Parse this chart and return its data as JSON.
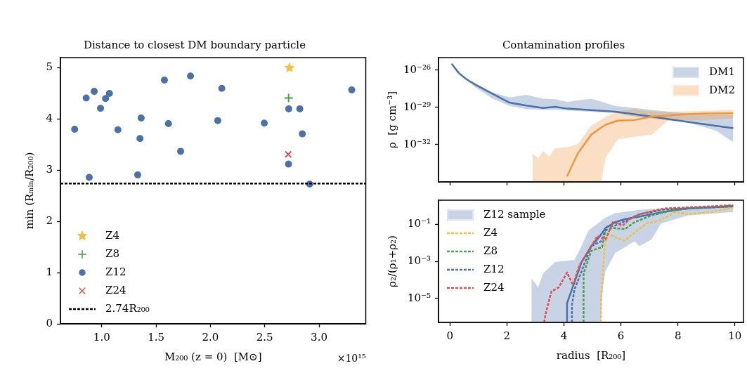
{
  "chart_data": [
    {
      "type": "scatter",
      "title": "Distance to closest DM boundary particle",
      "xlabel": "M₂₀₀ (z = 0)  [M⊙]",
      "ylabel": "min (Rₘᵢₙ/R₂₀₀)",
      "annotations": [
        "×10¹⁵"
      ],
      "xlim": [
        0.62,
        3.43
      ],
      "xticks": [
        {
          "value": 1,
          "label": "1.0"
        },
        {
          "value": 1.5,
          "label": "1.5"
        },
        {
          "value": 2,
          "label": "2.0"
        },
        {
          "value": 2.5,
          "label": "2.5"
        },
        {
          "value": 3,
          "label": "3.0"
        }
      ],
      "ylim": [
        0,
        5.2
      ],
      "yticks": [
        0,
        1,
        2,
        3,
        4,
        5
      ],
      "grid": false,
      "legend": "bottom left",
      "ref_lines": [
        {
          "axis": "y",
          "value": 2.74,
          "label": "2.74R₂₀₀",
          "color": "#000000",
          "line_style": "dashed"
        }
      ],
      "series": [
        {
          "name": "Z4",
          "color": "#f0c040",
          "marker": "star",
          "x": [
            2.728
          ],
          "values": [
            5.0
          ]
        },
        {
          "name": "Z8",
          "color": "#4ba04b",
          "marker": "plus",
          "x": [
            2.72
          ],
          "values": [
            4.41
          ]
        },
        {
          "name": "Z12",
          "color": "#4a72a8",
          "marker": "circle",
          "x": [
            0.751,
            0.857,
            0.885,
            0.931,
            0.989,
            1.035,
            1.071,
            1.149,
            1.331,
            1.352,
            1.363,
            1.577,
            1.614,
            1.726,
            1.817,
            2.068,
            2.105,
            2.496,
            2.721,
            2.719,
            2.823,
            2.846,
            2.914,
            3.301
          ],
          "values": [
            3.8,
            4.41,
            2.86,
            4.54,
            4.21,
            4.4,
            4.5,
            3.79,
            2.91,
            3.62,
            4.02,
            4.76,
            3.91,
            3.37,
            4.84,
            3.97,
            4.6,
            3.92,
            4.2,
            3.12,
            4.2,
            3.71,
            2.73,
            4.57
          ]
        },
        {
          "name": "Z24",
          "color": "#e05050",
          "marker": "cross",
          "x": [
            2.717
          ],
          "values": [
            3.31
          ]
        }
      ]
    },
    {
      "type": "line",
      "title": "Contamination profiles",
      "ylabel": "ρ  [g cm⁻³]",
      "log": "y",
      "tick_labels": "y",
      "grid": false,
      "legend": "top right",
      "xlim": [
        -0.4,
        10.3
      ],
      "xticks": [
        0,
        2,
        4,
        6,
        8,
        10
      ],
      "ylim": [
        1e-35,
        1e-25
      ],
      "yticks": [
        {
          "value": 1e-26,
          "label": "10⁻²⁶"
        },
        {
          "value": 1e-29,
          "label": "10⁻²⁹"
        },
        {
          "value": 1e-32,
          "label": "10⁻³²"
        }
      ],
      "series": [
        {
          "name": "DM1",
          "color": "#4a72a8",
          "x": [
            0.06,
            0.31,
            0.57,
            0.9,
            1.5,
            2.09,
            2.68,
            3.27,
            3.69,
            4.11,
            4.96,
            5.8,
            6.65,
            7.49,
            8.34,
            9.35,
            9.94
          ],
          "values": [
            3.2e-26,
            5.8e-27,
            1.9e-27,
            6.6e-28,
            1.2e-28,
            2.4e-29,
            1.4e-29,
            8.9e-30,
            1.1e-29,
            7.9e-30,
            5.9e-30,
            4.4e-30,
            2.5e-30,
            1.3e-30,
            6.8e-31,
            3.2e-31,
            2.1e-31
          ],
          "lower": [
            3e-26,
            5e-27,
            1.6e-27,
            4e-28,
            5e-29,
            1.3e-29,
            7.1e-30,
            6.3e-30,
            6.3e-30,
            5.6e-30,
            4.5e-30,
            3.5e-30,
            1.6e-30,
            1e-30,
            6.3e-31,
            1.3e-31,
            1.6e-32
          ],
          "upper": [
            3.2e-26,
            6.3e-27,
            2.2e-27,
            7.9e-28,
            1.6e-28,
            6.3e-29,
            1e-28,
            5e-29,
            4.5e-29,
            2.8e-29,
            5e-29,
            1.3e-29,
            7.9e-30,
            5e-30,
            3.2e-30,
            2.5e-30,
            2.5e-30
          ]
        },
        {
          "name": "DM2",
          "color": "#f0963c",
          "x": [
            2.9,
            3.1,
            3.27,
            3.48,
            3.69,
            4.11,
            4.49,
            4.96,
            5.3,
            5.46,
            5.89,
            6.48,
            7.07,
            7.66,
            7.91,
            8.76,
            9.94
          ],
          "values": [
            null,
            null,
            null,
            null,
            null,
            2.8e-35,
            2e-33,
            6.3e-32,
            2.3e-31,
            3.9e-31,
            8.5e-31,
            9.5e-31,
            1.8e-30,
            2.2e-30,
            2.5e-30,
            3.1e-30,
            3.3e-30
          ],
          "lower": [
            1e-35,
            1e-35,
            1e-35,
            1e-35,
            1e-35,
            1e-35,
            1e-35,
            1e-35,
            1e-35,
            8.5e-34,
            2.7e-32,
            4.2e-32,
            6.3e-32,
            8.5e-31,
            8.5e-31,
            9e-31,
            1.3e-30
          ],
          "upper": [
            2e-33,
            7.9e-34,
            3.2e-33,
            1.1e-33,
            5e-33,
            6.3e-33,
            1.1e-32,
            3.5e-31,
            1e-30,
            1.8e-30,
            4.4e-30,
            7.2e-30,
            4.7e-30,
            4.4e-30,
            4.4e-30,
            5.1e-30,
            5.9e-30
          ]
        }
      ]
    },
    {
      "type": "line",
      "xlabel": "radius  [R₂₀₀]",
      "ylabel": "ρ₂/(ρ₁+ρ₂)",
      "log": "y",
      "grid": false,
      "legend": "top left",
      "xlim": [
        -0.4,
        10.3
      ],
      "xticks": [
        0,
        2,
        4,
        6,
        8,
        10
      ],
      "ylim": [
        5e-07,
        2
      ],
      "yticks": [
        {
          "value": 0.1,
          "label": "10⁻¹"
        },
        {
          "value": 0.001,
          "label": "10⁻³"
        },
        {
          "value": 1e-05,
          "label": "10⁻⁵"
        }
      ],
      "series": [
        {
          "name": "Z12 sample",
          "color": "#4a72a8",
          "x": [
            2.86,
            3.1,
            3.27,
            3.69,
            4.37,
            4.58,
            4.87,
            5.3,
            5.34,
            5.38,
            5.46,
            5.8,
            6.48,
            6.65,
            7.07,
            7.41,
            8.34,
            9.94
          ],
          "values": [
            null,
            null,
            null,
            null,
            null,
            null,
            null,
            null,
            null,
            null,
            null,
            null,
            null,
            null,
            null,
            null,
            null,
            null
          ],
          "lower": [
            5e-07,
            5e-07,
            5e-07,
            5e-07,
            5e-07,
            5e-07,
            5e-07,
            5e-07,
            1e-05,
            5e-05,
            0.0003,
            0.0028,
            0.012,
            0.0066,
            0.015,
            0.11,
            0.3,
            0.46
          ],
          "upper": [
            0.00012,
            4e-05,
            0.00022,
            0.00091,
            0.0012,
            0.005,
            0.048,
            0.15,
            0.17,
            0.19,
            0.23,
            0.4,
            0.55,
            0.62,
            0.66,
            0.7,
            0.85,
            1.07
          ]
        },
        {
          "color": "#4a72a8",
          "line_style": "solid",
          "x": [
            4.11,
            4.11,
            4.28,
            4.62,
            4.96,
            5.13,
            5.3,
            5.46,
            5.8,
            6.14,
            6.65,
            7.49,
            8.34,
            9.94
          ],
          "values": [
            5e-07,
            5.5e-06,
            3e-05,
            0.00091,
            0.0066,
            0.013,
            0.028,
            0.063,
            0.13,
            0.19,
            0.26,
            0.46,
            0.71,
            0.93
          ]
        },
        {
          "name": "Z4",
          "color": "#f0c040",
          "line_style": "dashed",
          "x": [
            5.3,
            5.3,
            5.34,
            5.42,
            5.55,
            5.8,
            6.14,
            6.48,
            6.9,
            7.32,
            7.91,
            8.34,
            9.18,
            9.94
          ],
          "values": [
            5e-07,
            1e-05,
            5.2e-05,
            0.005,
            0.032,
            0.02,
            0.013,
            0.036,
            0.11,
            0.15,
            0.46,
            0.35,
            0.46,
            0.81
          ]
        },
        {
          "name": "Z8",
          "color": "#4ba04b",
          "line_style": "dashed",
          "x": [
            4.69,
            4.69,
            4.96,
            5.34,
            5.46,
            5.72,
            6.14,
            6.48,
            7.07,
            7.91,
            9.94
          ],
          "values": [
            5e-07,
            0.00022,
            0.0037,
            0.0058,
            0.048,
            0.063,
            0.055,
            0.13,
            0.3,
            0.62,
            1.02
          ]
        },
        {
          "name": "Z12",
          "color": "#4a72a8",
          "line_style": "dashed",
          "x": [
            4.28,
            4.28,
            4.37,
            4.62,
            4.96,
            5.3,
            5.51,
            5.8,
            6.14,
            6.65,
            7.49,
            9.94
          ],
          "values": [
            5e-07,
            4.2e-06,
            3e-05,
            0.00029,
            0.0066,
            0.012,
            0.074,
            0.085,
            0.15,
            0.35,
            0.62,
            0.93
          ]
        },
        {
          "name": "Z24",
          "color": "#e05050",
          "line_style": "dashed",
          "x": [
            3.31,
            3.35,
            3.56,
            3.82,
            4.11,
            4.32,
            4.54,
            4.87,
            5.17,
            5.46,
            5.72,
            6.06,
            6.31,
            6.65,
            7.49,
            9.94
          ],
          "values": [
            5e-07,
            1.3e-06,
            2.3e-05,
            4e-05,
            0.00025,
            5.2e-05,
            0.0006,
            0.0037,
            0.023,
            0.015,
            0.13,
            0.085,
            0.19,
            0.35,
            0.71,
            1.07
          ]
        }
      ]
    }
  ]
}
